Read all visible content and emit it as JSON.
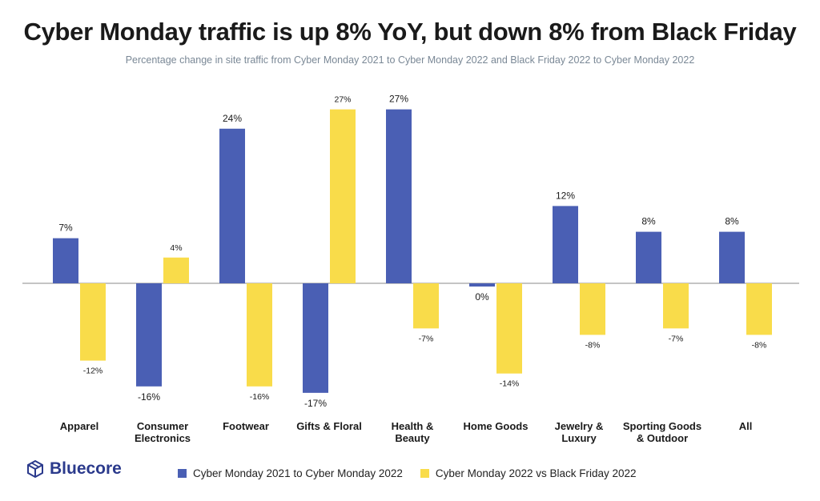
{
  "title": "Cyber Monday traffic is up 8% YoY, but down 8% from Black Friday",
  "subtitle": "Percentage change in site traffic from Cyber Monday 2021 to Cyber Monday 2022 and Black Friday 2022 to Cyber Monday 2022",
  "brand": {
    "name": "Bluecore",
    "icon": "cube-logo-icon"
  },
  "colors": {
    "series1": "#4a5fb4",
    "series2": "#f9dc4a",
    "axis": "#888888"
  },
  "chart_data": {
    "type": "bar",
    "categories": [
      [
        "Apparel"
      ],
      [
        "Consumer",
        "Electronics"
      ],
      [
        "Footwear"
      ],
      [
        "Gifts & Floral"
      ],
      [
        "Health &",
        "Beauty"
      ],
      [
        "Home Goods"
      ],
      [
        "Jewelry &",
        "Luxury"
      ],
      [
        "Sporting Goods",
        "& Outdoor"
      ],
      [
        "All"
      ]
    ],
    "series": [
      {
        "name": "Cyber Monday 2021 to Cyber Monday 2022",
        "values": [
          7,
          -16,
          24,
          -17,
          27,
          -0.5,
          12,
          8,
          8
        ],
        "labels": [
          "7%",
          "-16%",
          "24%",
          "-17%",
          "27%",
          "0%",
          "12%",
          "8%",
          "8%"
        ]
      },
      {
        "name": "Cyber Monday 2022 vs Black Friday 2022",
        "values": [
          -12,
          4,
          -16,
          27,
          -7,
          -14,
          -8,
          -7,
          -8
        ],
        "labels": [
          "-12%",
          "4%",
          "-16%",
          "27%",
          "-7%",
          "-14%",
          "-8%",
          "-7%",
          "-8%"
        ]
      }
    ],
    "ylim": [
      -17,
      27
    ],
    "grid": false,
    "legend_position": "bottom"
  }
}
